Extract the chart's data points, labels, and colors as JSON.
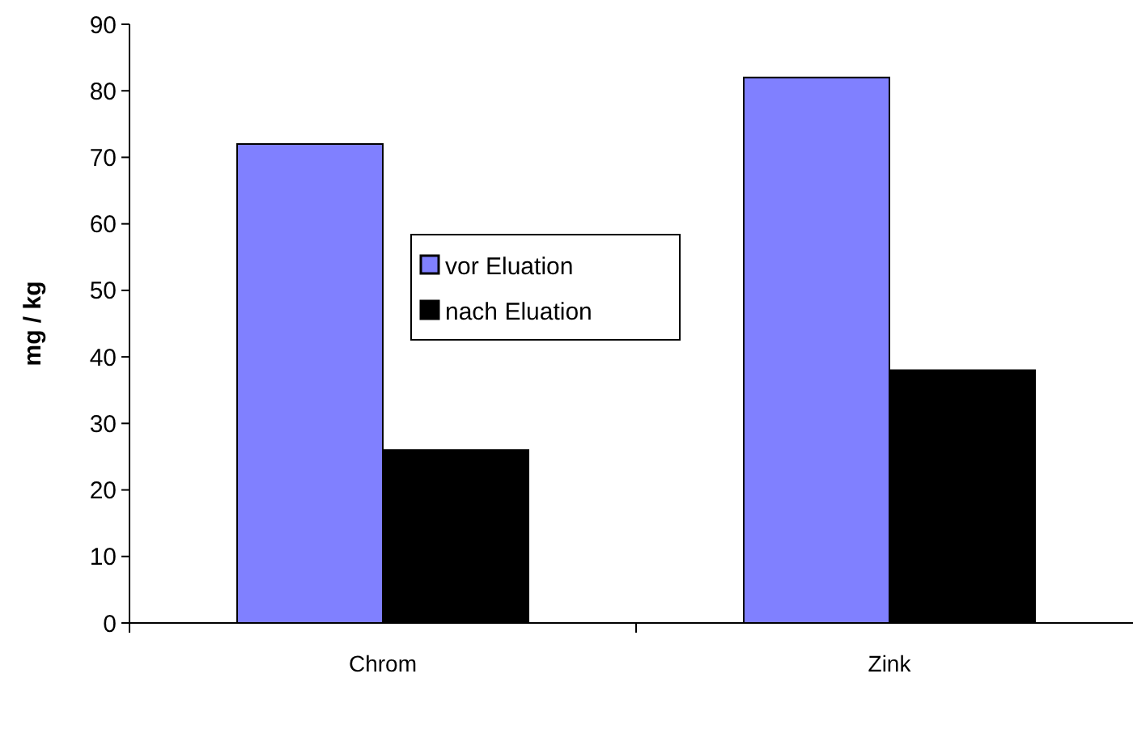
{
  "chart_data": {
    "type": "bar",
    "ylabel": "mg / kg",
    "categories": [
      "Chrom",
      "Zink"
    ],
    "series": [
      {
        "name": "vor Eluation",
        "color": "#8080ff",
        "values": [
          72,
          82
        ]
      },
      {
        "name": "nach Eluation",
        "color": "#000000",
        "values": [
          26,
          38
        ]
      }
    ],
    "ylim": [
      0,
      90
    ],
    "yticks": [
      0,
      10,
      20,
      30,
      40,
      50,
      60,
      70,
      80,
      90
    ],
    "grid": false,
    "legend": "top left"
  }
}
